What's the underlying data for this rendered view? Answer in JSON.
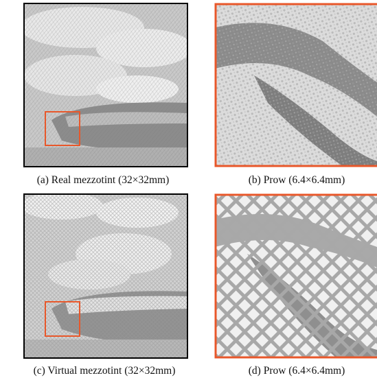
{
  "figure": {
    "panels": [
      {
        "caption": "(a) Real mezzotint (32×32mm)"
      },
      {
        "caption": "(b) Prow (6.4×6.4mm)"
      },
      {
        "caption": "(c) Virtual mezzotint (32×32mm)"
      },
      {
        "caption": "(d) Prow (6.4×6.4mm)"
      }
    ]
  }
}
